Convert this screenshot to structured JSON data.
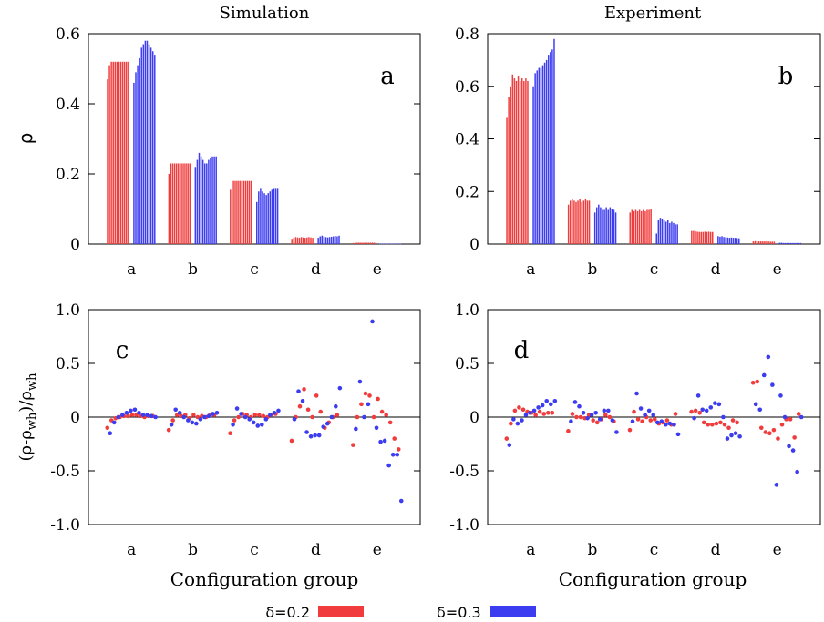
{
  "colors": {
    "delta02": "#f03c3c",
    "delta03": "#3c3cf0",
    "axis": "#000000"
  },
  "legend": {
    "s1": "δ=0.2",
    "s2": "δ=0.3"
  },
  "top_ylabel": "ρ",
  "bottom_ylabel_main": "(ρ-ρ",
  "bottom_ylabel_sub1": "wh",
  "bottom_ylabel_mid": ")/ρ",
  "bottom_ylabel_sub2": "wh",
  "xlabel": "Configuration group",
  "chart_data": [
    {
      "id": "a",
      "type": "bar",
      "title": "Simulation",
      "panel_label": "a",
      "categories": [
        "a",
        "b",
        "c",
        "d",
        "e"
      ],
      "ylim": [
        0,
        0.6
      ],
      "yticks": [
        "0",
        "0.2",
        "0.4",
        "0.6"
      ],
      "ytick_values": [
        0,
        0.2,
        0.4,
        0.6
      ],
      "series": [
        {
          "name": "δ=0.2",
          "values": [
            [
              0.47,
              0.51,
              0.52,
              0.52,
              0.52,
              0.52,
              0.52,
              0.52,
              0.52,
              0.52,
              0.52,
              0.52
            ],
            [
              0.2,
              0.23,
              0.23,
              0.23,
              0.23,
              0.23,
              0.23,
              0.23,
              0.23,
              0.23,
              0.23,
              0.23
            ],
            [
              0.155,
              0.18,
              0.18,
              0.18,
              0.18,
              0.18,
              0.18,
              0.18,
              0.18,
              0.18,
              0.18,
              0.18
            ],
            [
              0.015,
              0.018,
              0.02,
              0.019,
              0.018,
              0.02,
              0.019,
              0.018,
              0.019,
              0.02,
              0.019,
              0.018
            ],
            [
              0.003,
              0.004,
              0.004,
              0.004,
              0.004,
              0.004,
              0.004,
              0.004,
              0.004,
              0.004,
              0.004,
              0.004
            ]
          ]
        },
        {
          "name": "δ=0.3",
          "values": [
            [
              0.46,
              0.49,
              0.51,
              0.53,
              0.56,
              0.57,
              0.58,
              0.58,
              0.57,
              0.56,
              0.55,
              0.54
            ],
            [
              0.22,
              0.24,
              0.26,
              0.25,
              0.24,
              0.23,
              0.23,
              0.24,
              0.245,
              0.25,
              0.25,
              0.25
            ],
            [
              0.12,
              0.15,
              0.16,
              0.15,
              0.145,
              0.14,
              0.145,
              0.15,
              0.155,
              0.16,
              0.16,
              0.16
            ],
            [
              0.018,
              0.022,
              0.024,
              0.022,
              0.02,
              0.019,
              0.02,
              0.021,
              0.022,
              0.023,
              0.022,
              0.024
            ],
            [
              0.001,
              0.001,
              0.001,
              0.001,
              0.001,
              0.001,
              0.001,
              0.001,
              0.001,
              0.001,
              0.001,
              0.001
            ]
          ]
        }
      ]
    },
    {
      "id": "b",
      "type": "bar",
      "title": "Experiment",
      "panel_label": "b",
      "categories": [
        "a",
        "b",
        "c",
        "d",
        "e"
      ],
      "ylim": [
        0,
        0.8
      ],
      "yticks": [
        "0",
        "0.2",
        "0.4",
        "0.6",
        "0.8"
      ],
      "ytick_values": [
        0,
        0.2,
        0.4,
        0.6,
        0.8
      ],
      "series": [
        {
          "name": "δ=0.2",
          "values": [
            [
              0.48,
              0.56,
              0.6,
              0.645,
              0.63,
              0.62,
              0.64,
              0.62,
              0.63,
              0.62,
              0.63,
              0.62
            ],
            [
              0.15,
              0.165,
              0.17,
              0.165,
              0.16,
              0.165,
              0.17,
              0.16,
              0.165,
              0.17,
              0.165,
              0.165
            ],
            [
              0.12,
              0.13,
              0.125,
              0.13,
              0.125,
              0.13,
              0.125,
              0.13,
              0.125,
              0.13,
              0.13,
              0.135
            ],
            [
              0.05,
              0.05,
              0.048,
              0.047,
              0.046,
              0.046,
              0.046,
              0.047,
              0.046,
              0.047,
              0.046,
              0.046
            ],
            [
              0.01,
              0.011,
              0.01,
              0.01,
              0.01,
              0.01,
              0.01,
              0.01,
              0.01,
              0.009,
              0.009,
              0.009
            ]
          ]
        },
        {
          "name": "δ=0.3",
          "values": [
            [
              0.6,
              0.65,
              0.66,
              0.67,
              0.67,
              0.68,
              0.69,
              0.7,
              0.72,
              0.73,
              0.74,
              0.78
            ],
            [
              0.12,
              0.14,
              0.15,
              0.14,
              0.13,
              0.13,
              0.14,
              0.13,
              0.14,
              0.135,
              0.13,
              0.12
            ],
            [
              0.04,
              0.09,
              0.1,
              0.095,
              0.09,
              0.085,
              0.09,
              0.08,
              0.085,
              0.08,
              0.075,
              0.075
            ],
            [
              0.03,
              0.028,
              0.03,
              0.027,
              0.026,
              0.025,
              0.024,
              0.025,
              0.024,
              0.024,
              0.023,
              0.022
            ],
            [
              0.005,
              0.005,
              0.004,
              0.004,
              0.004,
              0.004,
              0.004,
              0.004,
              0.004,
              0.004,
              0.004,
              0.004
            ]
          ]
        }
      ]
    },
    {
      "id": "c",
      "type": "scatter",
      "panel_label": "c",
      "categories": [
        "a",
        "b",
        "c",
        "d",
        "e"
      ],
      "ylim": [
        -1.0,
        1.0
      ],
      "yticks": [
        "-1.0",
        "-0.5",
        "0",
        "0.5",
        "1.0"
      ],
      "ytick_values": [
        -1.0,
        -0.5,
        0,
        0.5,
        1.0
      ],
      "series": [
        {
          "name": "δ=0.2",
          "values": [
            [
              -0.1,
              -0.03,
              -0.01,
              0.0,
              0.01,
              0.01,
              0.02,
              0.02,
              0.01,
              0.0,
              0.01,
              0.01
            ],
            [
              -0.12,
              -0.03,
              0.02,
              0.01,
              0.02,
              -0.01,
              0.02,
              0.0,
              0.01,
              0.0,
              0.02,
              0.02
            ],
            [
              -0.15,
              -0.03,
              0.0,
              0.03,
              0.02,
              0.0,
              0.02,
              0.02,
              0.01,
              0.0,
              0.02,
              0.03
            ],
            [
              -0.22,
              0.0,
              0.1,
              0.26,
              0.07,
              0.0,
              0.2,
              0.05,
              -0.1,
              -0.05,
              0.0,
              0.02
            ],
            [
              -0.26,
              0.0,
              0.12,
              0.22,
              0.2,
              0.0,
              0.17,
              0.05,
              0.02,
              -0.05,
              -0.2,
              -0.3
            ]
          ]
        },
        {
          "name": "δ=0.3",
          "values": [
            [
              -0.15,
              -0.05,
              0.0,
              0.02,
              0.04,
              0.06,
              0.07,
              0.04,
              0.02,
              0.02,
              0.01,
              0.0
            ],
            [
              -0.07,
              0.07,
              0.04,
              0.0,
              -0.03,
              -0.05,
              -0.06,
              -0.02,
              0.0,
              0.01,
              0.03,
              0.04
            ],
            [
              -0.07,
              0.08,
              0.03,
              0.0,
              -0.02,
              -0.05,
              -0.08,
              -0.07,
              -0.02,
              0.02,
              0.04,
              0.06
            ],
            [
              -0.02,
              0.24,
              0.15,
              -0.14,
              -0.18,
              -0.17,
              -0.17,
              -0.09,
              -0.06,
              0.0,
              0.1,
              0.27
            ],
            [
              -0.11,
              0.33,
              0.0,
              0.12,
              0.89,
              -0.1,
              -0.23,
              -0.22,
              -0.45,
              -0.35,
              -0.35,
              -0.78
            ]
          ]
        }
      ]
    },
    {
      "id": "d",
      "type": "scatter",
      "panel_label": "d",
      "categories": [
        "a",
        "b",
        "c",
        "d",
        "e"
      ],
      "ylim": [
        -1.0,
        1.0
      ],
      "yticks": [
        "-1.0",
        "-0.5",
        "0",
        "0.5",
        "1.0"
      ],
      "ytick_values": [
        -1.0,
        -0.5,
        0,
        0.5,
        1.0
      ],
      "series": [
        {
          "name": "δ=0.2",
          "values": [
            [
              -0.2,
              -0.06,
              0.06,
              0.09,
              0.07,
              0.05,
              0.04,
              0.02,
              0.05,
              0.03,
              0.04,
              0.04
            ],
            [
              -0.13,
              0.03,
              0.0,
              0.0,
              -0.01,
              0.02,
              -0.03,
              -0.05,
              -0.02,
              0.02,
              0.0,
              -0.04
            ],
            [
              -0.12,
              0.05,
              -0.02,
              -0.04,
              0.0,
              -0.03,
              -0.02,
              -0.06,
              -0.05,
              -0.03,
              -0.07,
              0.03
            ],
            [
              0.05,
              0.06,
              0.04,
              -0.05,
              -0.07,
              -0.07,
              -0.06,
              -0.05,
              -0.07,
              -0.1,
              -0.03,
              -0.05
            ],
            [
              0.32,
              0.33,
              -0.1,
              -0.14,
              -0.15,
              -0.12,
              -0.2,
              -0.07,
              -0.02,
              -0.02,
              -0.19,
              0.03
            ]
          ]
        },
        {
          "name": "δ=0.3",
          "values": [
            [
              -0.26,
              -0.02,
              -0.06,
              -0.03,
              0.02,
              0.04,
              0.06,
              0.09,
              0.11,
              0.15,
              0.12,
              0.15
            ],
            [
              -0.04,
              0.14,
              0.1,
              0.04,
              -0.01,
              0.02,
              0.04,
              -0.02,
              0.06,
              0.06,
              -0.03,
              -0.14
            ],
            [
              -0.04,
              0.22,
              0.08,
              0.02,
              0.06,
              0.02,
              -0.05,
              -0.04,
              -0.07,
              -0.06,
              -0.07,
              -0.16
            ],
            [
              -0.01,
              0.2,
              0.07,
              0.06,
              0.09,
              0.13,
              0.12,
              0.0,
              -0.2,
              -0.17,
              -0.15,
              -0.18
            ],
            [
              0.12,
              0.07,
              0.39,
              0.56,
              0.3,
              -0.63,
              0.2,
              0.0,
              -0.27,
              -0.31,
              -0.51,
              0.0
            ]
          ]
        }
      ]
    }
  ]
}
